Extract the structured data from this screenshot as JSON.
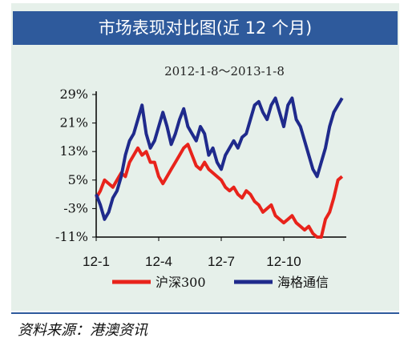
{
  "colors": {
    "title_bg": "#2e5a9c",
    "panel_bg": "#e6f0ea",
    "series_hs300": "#e8231b",
    "series_haige": "#1f2a8c"
  },
  "chart_data": {
    "type": "line",
    "title": "市场表现对比图(近 12 个月)",
    "subtitle": "2012-1-8～2013-1-8",
    "ylim": [
      -11,
      29
    ],
    "yticks": [
      "29%",
      "21%",
      "13%",
      "5%",
      "-3%",
      "-11%"
    ],
    "ytick_values": [
      29,
      21,
      13,
      5,
      -3,
      -11
    ],
    "xticks": [
      "12-1",
      "12-4",
      "12-7",
      "12-10"
    ],
    "xtick_values": [
      0,
      3,
      6,
      9
    ],
    "xlim": [
      0,
      12
    ],
    "legend_position": "bottom",
    "series": [
      {
        "name": "沪深300",
        "x": [
          0,
          0.2,
          0.4,
          0.6,
          0.8,
          1.0,
          1.2,
          1.4,
          1.6,
          1.8,
          2.0,
          2.2,
          2.4,
          2.6,
          2.8,
          3.0,
          3.2,
          3.4,
          3.6,
          3.8,
          4.0,
          4.2,
          4.4,
          4.6,
          4.8,
          5.0,
          5.2,
          5.4,
          5.6,
          5.8,
          6.0,
          6.2,
          6.4,
          6.6,
          6.8,
          7.0,
          7.2,
          7.4,
          7.6,
          7.8,
          8.0,
          8.2,
          8.4,
          8.6,
          8.8,
          9.0,
          9.2,
          9.4,
          9.6,
          9.8,
          10.0,
          10.2,
          10.4,
          10.6,
          10.8,
          11.0,
          11.2,
          11.4,
          11.6,
          11.8
        ],
        "values": [
          0,
          2,
          5,
          4,
          3,
          5,
          7,
          6,
          10,
          12,
          14,
          12,
          13,
          10,
          10,
          6,
          4,
          6,
          8,
          10,
          12,
          14,
          15,
          12,
          9,
          8,
          10,
          8,
          7,
          6,
          5,
          3,
          2,
          3,
          1,
          0,
          2,
          1,
          -1,
          -2,
          -4,
          -3,
          -2,
          -5,
          -6,
          -7,
          -6,
          -5,
          -7,
          -8,
          -9,
          -8,
          -10,
          -11,
          -11,
          -6,
          -4,
          0,
          5,
          6
        ],
        "color": "#e8231b"
      },
      {
        "name": "海格通信",
        "x": [
          0,
          0.2,
          0.4,
          0.6,
          0.8,
          1.0,
          1.2,
          1.4,
          1.6,
          1.8,
          2.0,
          2.2,
          2.4,
          2.6,
          2.8,
          3.0,
          3.2,
          3.4,
          3.6,
          3.8,
          4.0,
          4.2,
          4.4,
          4.6,
          4.8,
          5.0,
          5.2,
          5.4,
          5.6,
          5.8,
          6.0,
          6.2,
          6.4,
          6.6,
          6.8,
          7.0,
          7.2,
          7.4,
          7.6,
          7.8,
          8.0,
          8.2,
          8.4,
          8.6,
          8.8,
          9.0,
          9.2,
          9.4,
          9.6,
          9.8,
          10.0,
          10.2,
          10.4,
          10.6,
          10.8,
          11.0,
          11.2,
          11.4,
          11.6,
          11.8
        ],
        "values": [
          1,
          -2,
          -6,
          -4,
          0,
          2,
          6,
          12,
          16,
          18,
          22,
          26,
          18,
          14,
          16,
          20,
          24,
          20,
          15,
          18,
          22,
          25,
          20,
          18,
          16,
          20,
          18,
          12,
          14,
          10,
          8,
          12,
          14,
          16,
          14,
          17,
          18,
          22,
          26,
          27,
          24,
          22,
          26,
          28,
          24,
          20,
          26,
          28,
          22,
          20,
          16,
          12,
          8,
          6,
          10,
          14,
          20,
          24,
          26,
          28
        ],
        "color": "#1f2a8c"
      }
    ]
  },
  "source_text": "资料来源：港澳资讯"
}
